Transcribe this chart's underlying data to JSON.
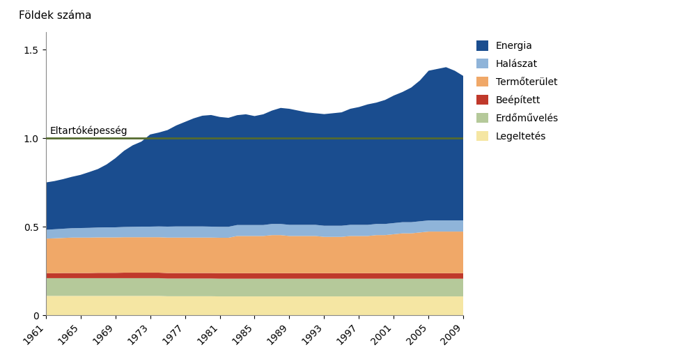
{
  "ylabel": "Földek száma",
  "ylim": [
    0,
    1.6
  ],
  "xlim": [
    1961,
    2009
  ],
  "yticks": [
    0,
    0.5,
    1.0,
    1.5
  ],
  "xtick_labels": [
    "1961",
    "1965",
    "1969",
    "1973",
    "1977",
    "1981",
    "1985",
    "1989",
    "1993",
    "1997",
    "2001",
    "2005",
    "2009"
  ],
  "xtick_values": [
    1961,
    1965,
    1969,
    1973,
    1977,
    1981,
    1985,
    1989,
    1993,
    1997,
    2001,
    2005,
    2009
  ],
  "carrying_capacity_label": "Eltartóképesség",
  "colors": {
    "Legeltetés": "#f5e6a3",
    "Erdőművelés": "#b5c99a",
    "Beépített": "#c0392b",
    "Termőterület": "#f0a868",
    "Halászat": "#8fb4d9",
    "Energia": "#1a4d8f"
  },
  "legend_labels": [
    "Energia",
    "Halászat",
    "Termőterület",
    "Beépített",
    "Erdőművelés",
    "Legeltetés"
  ],
  "carrying_capacity_line_color": "#556b2f",
  "years": [
    1961,
    1962,
    1963,
    1964,
    1965,
    1966,
    1967,
    1968,
    1969,
    1970,
    1971,
    1972,
    1973,
    1974,
    1975,
    1976,
    1977,
    1978,
    1979,
    1980,
    1981,
    1982,
    1983,
    1984,
    1985,
    1986,
    1987,
    1988,
    1989,
    1990,
    1991,
    1992,
    1993,
    1994,
    1995,
    1996,
    1997,
    1998,
    1999,
    2000,
    2001,
    2002,
    2003,
    2004,
    2005,
    2006,
    2007,
    2008,
    2009
  ],
  "legeltetés": [
    0.11,
    0.11,
    0.11,
    0.11,
    0.11,
    0.11,
    0.11,
    0.11,
    0.11,
    0.11,
    0.11,
    0.11,
    0.11,
    0.11,
    0.108,
    0.108,
    0.108,
    0.108,
    0.108,
    0.108,
    0.107,
    0.107,
    0.107,
    0.107,
    0.107,
    0.107,
    0.107,
    0.107,
    0.107,
    0.107,
    0.107,
    0.107,
    0.107,
    0.107,
    0.107,
    0.107,
    0.107,
    0.107,
    0.107,
    0.107,
    0.107,
    0.107,
    0.107,
    0.107,
    0.107,
    0.107,
    0.107,
    0.107,
    0.107
  ],
  "erdőművelés": [
    0.1,
    0.1,
    0.1,
    0.1,
    0.1,
    0.1,
    0.1,
    0.1,
    0.1,
    0.1,
    0.1,
    0.1,
    0.1,
    0.1,
    0.1,
    0.1,
    0.1,
    0.1,
    0.1,
    0.1,
    0.1,
    0.1,
    0.1,
    0.1,
    0.1,
    0.1,
    0.1,
    0.1,
    0.1,
    0.1,
    0.1,
    0.1,
    0.1,
    0.1,
    0.1,
    0.1,
    0.1,
    0.1,
    0.1,
    0.1,
    0.1,
    0.1,
    0.1,
    0.1,
    0.1,
    0.1,
    0.1,
    0.1,
    0.1
  ],
  "beépített": [
    0.028,
    0.028,
    0.029,
    0.029,
    0.029,
    0.029,
    0.03,
    0.03,
    0.03,
    0.031,
    0.031,
    0.031,
    0.031,
    0.031,
    0.031,
    0.031,
    0.031,
    0.031,
    0.031,
    0.031,
    0.031,
    0.031,
    0.031,
    0.031,
    0.031,
    0.031,
    0.031,
    0.031,
    0.031,
    0.031,
    0.031,
    0.031,
    0.031,
    0.031,
    0.031,
    0.031,
    0.031,
    0.031,
    0.031,
    0.031,
    0.031,
    0.031,
    0.031,
    0.031,
    0.031,
    0.031,
    0.031,
    0.031,
    0.031
  ],
  "termőterület": [
    0.195,
    0.197,
    0.198,
    0.2,
    0.2,
    0.2,
    0.2,
    0.2,
    0.2,
    0.2,
    0.2,
    0.2,
    0.2,
    0.2,
    0.2,
    0.2,
    0.2,
    0.2,
    0.2,
    0.2,
    0.2,
    0.2,
    0.21,
    0.21,
    0.21,
    0.21,
    0.215,
    0.215,
    0.21,
    0.21,
    0.21,
    0.21,
    0.205,
    0.205,
    0.205,
    0.21,
    0.21,
    0.21,
    0.215,
    0.215,
    0.22,
    0.225,
    0.225,
    0.23,
    0.235,
    0.235,
    0.235,
    0.235,
    0.235
  ],
  "halászat": [
    0.05,
    0.051,
    0.052,
    0.053,
    0.054,
    0.055,
    0.056,
    0.057,
    0.057,
    0.058,
    0.059,
    0.06,
    0.06,
    0.061,
    0.062,
    0.063,
    0.063,
    0.063,
    0.063,
    0.062,
    0.062,
    0.062,
    0.062,
    0.062,
    0.062,
    0.062,
    0.063,
    0.063,
    0.063,
    0.063,
    0.063,
    0.063,
    0.063,
    0.063,
    0.063,
    0.063,
    0.063,
    0.063,
    0.063,
    0.063,
    0.063,
    0.063,
    0.063,
    0.063,
    0.063,
    0.063,
    0.063,
    0.063,
    0.063
  ],
  "energia": [
    0.267,
    0.272,
    0.28,
    0.29,
    0.3,
    0.315,
    0.33,
    0.355,
    0.39,
    0.43,
    0.46,
    0.48,
    0.52,
    0.53,
    0.545,
    0.57,
    0.59,
    0.61,
    0.625,
    0.63,
    0.62,
    0.615,
    0.62,
    0.625,
    0.615,
    0.625,
    0.64,
    0.655,
    0.655,
    0.645,
    0.635,
    0.63,
    0.63,
    0.635,
    0.64,
    0.655,
    0.665,
    0.68,
    0.685,
    0.7,
    0.72,
    0.735,
    0.76,
    0.795,
    0.845,
    0.855,
    0.865,
    0.845,
    0.815
  ]
}
